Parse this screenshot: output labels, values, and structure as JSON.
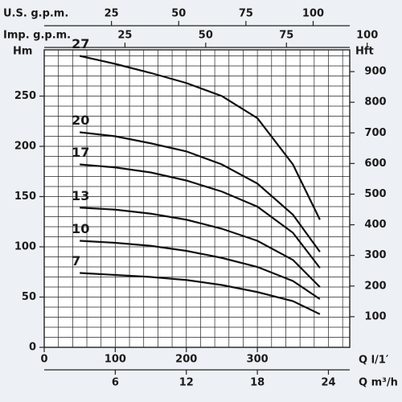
{
  "chart_data": {
    "type": "line",
    "x": [
      50,
      100,
      150,
      200,
      250,
      300,
      350,
      388
    ],
    "series": [
      {
        "name": "27",
        "color": "#111111",
        "values": [
          290,
          282,
          273,
          263,
          250,
          228,
          182,
          127
        ]
      },
      {
        "name": "20",
        "color": "#111111",
        "values": [
          214,
          210,
          203,
          195,
          182,
          163,
          132,
          95
        ]
      },
      {
        "name": "17",
        "color": "#111111",
        "values": [
          182,
          179,
          174,
          166,
          155,
          140,
          114,
          79
        ]
      },
      {
        "name": "13",
        "color": "#111111",
        "values": [
          139,
          137,
          133,
          127,
          118,
          106,
          87,
          60
        ]
      },
      {
        "name": "10",
        "color": "#111111",
        "values": [
          106,
          104,
          101,
          96,
          89,
          80,
          66,
          48
        ]
      },
      {
        "name": "7",
        "color": "#111111",
        "values": [
          74,
          72,
          70,
          67,
          62,
          55,
          46,
          33
        ]
      }
    ],
    "xlabel": "Q l/1′",
    "xlim": [
      0,
      430
    ],
    "xticks": [
      0,
      100,
      200,
      300
    ],
    "x2label": "Q m³/h",
    "x2lim": [
      0,
      25.8
    ],
    "x2ticks": [
      6,
      12,
      18,
      24
    ],
    "x3label": "U.S. g.p.m.",
    "x3lim": [
      0,
      113.6
    ],
    "x3ticks": [
      25,
      50,
      75,
      100
    ],
    "x4label": "Imp. g.p.m.",
    "x4lim": [
      0,
      94.6
    ],
    "x4ticks": [
      25,
      50,
      75,
      100
    ],
    "ylabel": "Hm",
    "ylim": [
      0,
      296
    ],
    "yticks": [
      0,
      50,
      100,
      150,
      200,
      250
    ],
    "y2label": "Hft",
    "y2lim": [
      0,
      971
    ],
    "y2ticks": [
      100,
      200,
      300,
      400,
      500,
      600,
      700,
      800,
      900
    ],
    "xgrid": [
      0,
      20,
      40,
      60,
      80,
      100,
      120,
      140,
      160,
      180,
      200,
      220,
      240,
      260,
      280,
      300,
      320,
      340,
      360,
      380,
      400,
      420
    ],
    "ygrid": [
      0,
      10,
      20,
      30,
      40,
      50,
      60,
      70,
      80,
      90,
      100,
      110,
      120,
      130,
      140,
      150,
      160,
      170,
      180,
      190,
      200,
      210,
      220,
      230,
      240,
      250,
      260,
      270,
      280,
      290
    ]
  }
}
